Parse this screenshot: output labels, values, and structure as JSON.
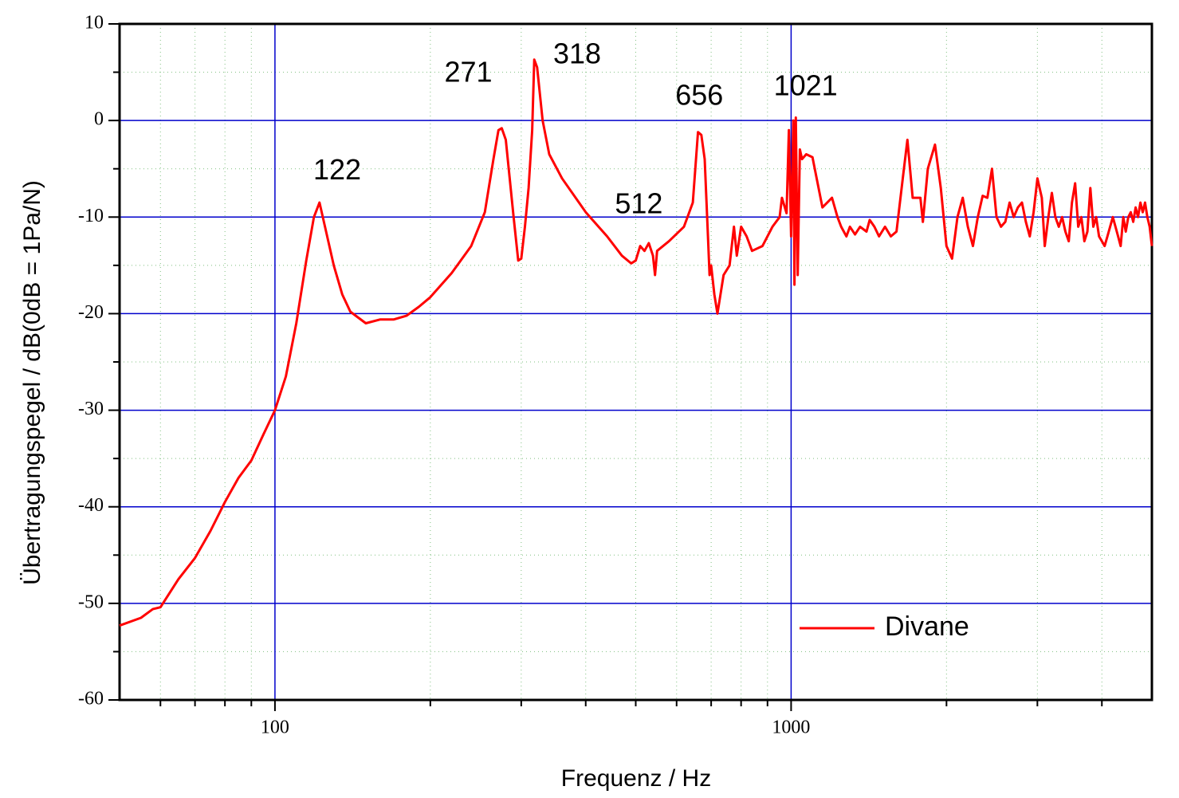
{
  "chart_data": {
    "type": "line",
    "xlabel": "Frequenz / Hz",
    "ylabel": "Übertragungspegel / dB(0dB = 1Pa/N)",
    "xscale": "log",
    "xlim": [
      50,
      5000
    ],
    "ylim": [
      -60,
      10
    ],
    "xticks": [
      100,
      1000
    ],
    "yticks": [
      -60,
      -50,
      -40,
      -30,
      -20,
      -10,
      0,
      10
    ],
    "xminorticks": [
      60,
      70,
      80,
      90,
      200,
      300,
      400,
      500,
      600,
      700,
      800,
      900,
      2000,
      3000,
      4000
    ],
    "yminorticks": [
      -55,
      -45,
      -35,
      -25,
      -15,
      -5,
      5
    ],
    "grid": true,
    "legend": "lower right",
    "x": [
      50,
      55,
      58,
      60,
      65,
      70,
      75,
      80,
      85,
      90,
      95,
      100,
      105,
      110,
      115,
      119,
      122,
      125,
      130,
      135,
      140,
      150,
      160,
      170,
      180,
      190,
      200,
      220,
      240,
      255,
      265,
      271,
      275,
      280,
      290,
      296,
      300,
      305,
      310,
      315,
      318,
      322,
      330,
      340,
      360,
      400,
      440,
      470,
      490,
      500,
      510,
      520,
      530,
      540,
      545,
      550,
      580,
      620,
      645,
      660,
      670,
      680,
      690,
      695,
      700,
      710,
      720,
      740,
      760,
      775,
      785,
      800,
      820,
      840,
      880,
      920,
      950,
      960,
      980,
      990,
      1000,
      1010,
      1015,
      1021,
      1030,
      1040,
      1050,
      1070,
      1100,
      1150,
      1200,
      1230,
      1250,
      1280,
      1300,
      1330,
      1360,
      1400,
      1420,
      1450,
      1480,
      1520,
      1560,
      1600,
      1650,
      1680,
      1720,
      1780,
      1800,
      1840,
      1900,
      1950,
      2000,
      2050,
      2100,
      2150,
      2200,
      2250,
      2300,
      2350,
      2400,
      2450,
      2500,
      2550,
      2600,
      2650,
      2700,
      2750,
      2800,
      2850,
      2900,
      2950,
      3000,
      3060,
      3100,
      3150,
      3200,
      3250,
      3300,
      3350,
      3400,
      3450,
      3500,
      3550,
      3600,
      3650,
      3700,
      3750,
      3800,
      3850,
      3900,
      3950,
      4000,
      4050,
      4100,
      4150,
      4200,
      4250,
      4300,
      4350,
      4400,
      4450,
      4500,
      4550,
      4600,
      4650,
      4700,
      4750,
      4800,
      4850,
      4900,
      4950,
      5000
    ],
    "series": [
      {
        "name": "Divane",
        "color": "#ff0000",
        "values": [
          -52.3,
          -51.5,
          -50.6,
          -50.4,
          -47.5,
          -45.3,
          -42.5,
          -39.5,
          -37,
          -35.2,
          -32.5,
          -30,
          -26.5,
          -21,
          -14.5,
          -10,
          -8.5,
          -11,
          -15,
          -18,
          -19.8,
          -21,
          -20.6,
          -20.6,
          -20.2,
          -19.3,
          -18.3,
          -15.8,
          -13,
          -9.5,
          -4,
          -1,
          -0.8,
          -2,
          -10,
          -14.5,
          -14.3,
          -11,
          -7,
          -1,
          6.3,
          5.5,
          0,
          -3.5,
          -6,
          -9.5,
          -12,
          -14,
          -14.8,
          -14.5,
          -13,
          -13.5,
          -12.7,
          -14,
          -16,
          -13.5,
          -12.5,
          -11,
          -8.5,
          -1.2,
          -1.5,
          -4,
          -12,
          -16,
          -15,
          -18,
          -20,
          -16,
          -15,
          -11,
          -14,
          -11,
          -12,
          -13.5,
          -13,
          -11,
          -10,
          -8,
          -9.6,
          -1,
          -12,
          0,
          -17,
          0.3,
          -16,
          -3,
          -4,
          -3.5,
          -3.8,
          -9,
          -8,
          -10,
          -11,
          -12,
          -11,
          -11.8,
          -11,
          -11.5,
          -10.3,
          -11,
          -12,
          -11,
          -12,
          -11.5,
          -5.5,
          -2,
          -8,
          -8,
          -10.5,
          -5,
          -2.5,
          -7,
          -13,
          -14.3,
          -10,
          -8,
          -11,
          -13,
          -10,
          -7.8,
          -8,
          -5,
          -10,
          -11,
          -10.5,
          -8.5,
          -10,
          -9,
          -8.5,
          -10.5,
          -12,
          -9.5,
          -6,
          -8,
          -13,
          -10,
          -7.5,
          -10,
          -11,
          -10,
          -11.5,
          -12.5,
          -8.5,
          -6.5,
          -11,
          -10,
          -12.5,
          -11.5,
          -7,
          -11,
          -10,
          -12,
          -12.5,
          -13,
          -12,
          -11,
          -10,
          -11,
          -12,
          -13,
          -10,
          -11.5,
          -10,
          -9.5,
          -10.5,
          -9,
          -10,
          -8.5,
          -9.5,
          -8.5,
          -10,
          -11,
          -13
        ]
      }
    ],
    "annotations": [
      {
        "text": "122",
        "x": 132,
        "y": -5.3
      },
      {
        "text": "271",
        "x": 237,
        "y": 4.8
      },
      {
        "text": "318",
        "x": 385,
        "y": 6.7
      },
      {
        "text": "512",
        "x": 507,
        "y": -8.8
      },
      {
        "text": "656",
        "x": 664,
        "y": 2.4
      },
      {
        "text": "1021",
        "x": 1067,
        "y": 3.4
      }
    ]
  }
}
